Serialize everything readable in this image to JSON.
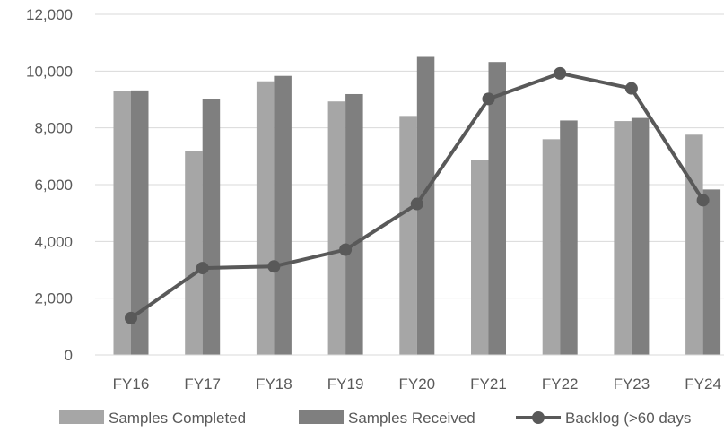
{
  "chart_data": {
    "type": "bar",
    "categories": [
      "FY16",
      "FY17",
      "FY18",
      "FY19",
      "FY20",
      "FY21",
      "FY22",
      "FY23",
      "FY24"
    ],
    "series": [
      {
        "name": "Samples Completed",
        "type": "bar",
        "color": "#a6a6a6",
        "values": [
          9300,
          7180,
          9640,
          8930,
          8420,
          6860,
          7600,
          8240,
          7760
        ]
      },
      {
        "name": "Samples Received",
        "type": "bar",
        "color": "#7f7f7f",
        "values": [
          9320,
          9000,
          9830,
          9190,
          10500,
          10320,
          8260,
          8350,
          5830
        ]
      },
      {
        "name": "Backlog (>60 days",
        "type": "line",
        "color": "#595959",
        "values": [
          1300,
          3060,
          3120,
          3710,
          5320,
          9020,
          9920,
          9390,
          5450
        ]
      }
    ],
    "yticks": [
      "0",
      "2,000",
      "4,000",
      "6,000",
      "8,000",
      "10,000",
      "12,000"
    ],
    "ylim": [
      0,
      12000
    ],
    "grid": true,
    "legend": "bottom"
  }
}
